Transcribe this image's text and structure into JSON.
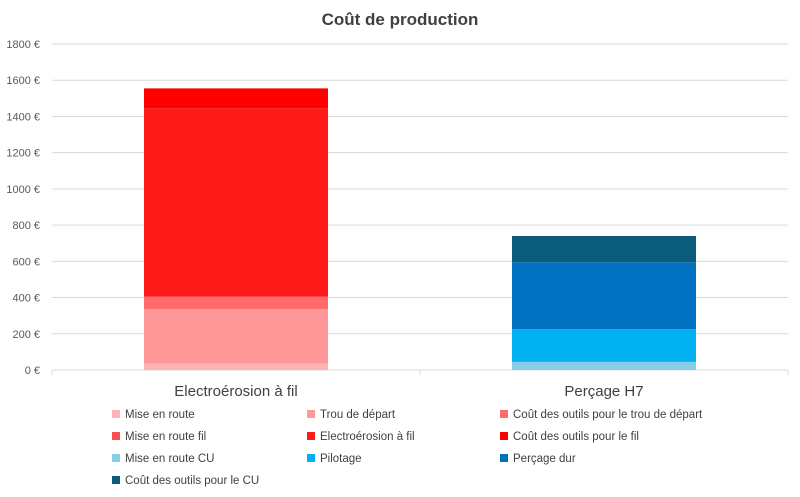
{
  "chart_data": {
    "type": "bar",
    "stacked": true,
    "title": "Coût de production",
    "categories": [
      "Electroérosion à fil",
      "Perçage H7"
    ],
    "ylim": [
      0,
      1800
    ],
    "ytick_step": 200,
    "ytick_suffix": " €",
    "grid": true,
    "legend_position": "bottom",
    "series": [
      {
        "name": "Mise en route",
        "color": "#FFB3B3",
        "values": [
          35,
          0
        ]
      },
      {
        "name": "Trou de départ",
        "color": "#FF9999",
        "values": [
          300,
          0
        ]
      },
      {
        "name": "Coût des outils pour le trou de départ",
        "color": "#FF6B6B",
        "values": [
          70,
          0
        ]
      },
      {
        "name": "Mise en route fil",
        "color": "#FF4D4D",
        "values": [
          0,
          0
        ]
      },
      {
        "name": "Electroérosion à fil",
        "color": "#FF1A1A",
        "values": [
          1040,
          0
        ]
      },
      {
        "name": "Coût des outils pour le fil",
        "color": "#FF0000",
        "values": [
          110,
          0
        ]
      },
      {
        "name": "Mise en route CU",
        "color": "#87CEEB",
        "values": [
          0,
          45
        ]
      },
      {
        "name": "Pilotage",
        "color": "#00B0F0",
        "values": [
          0,
          180
        ]
      },
      {
        "name": "Perçage dur",
        "color": "#0070C0",
        "values": [
          0,
          370
        ]
      },
      {
        "name": "Coût des outils pour le CU",
        "color": "#0B5C7A",
        "values": [
          0,
          145
        ]
      }
    ]
  }
}
